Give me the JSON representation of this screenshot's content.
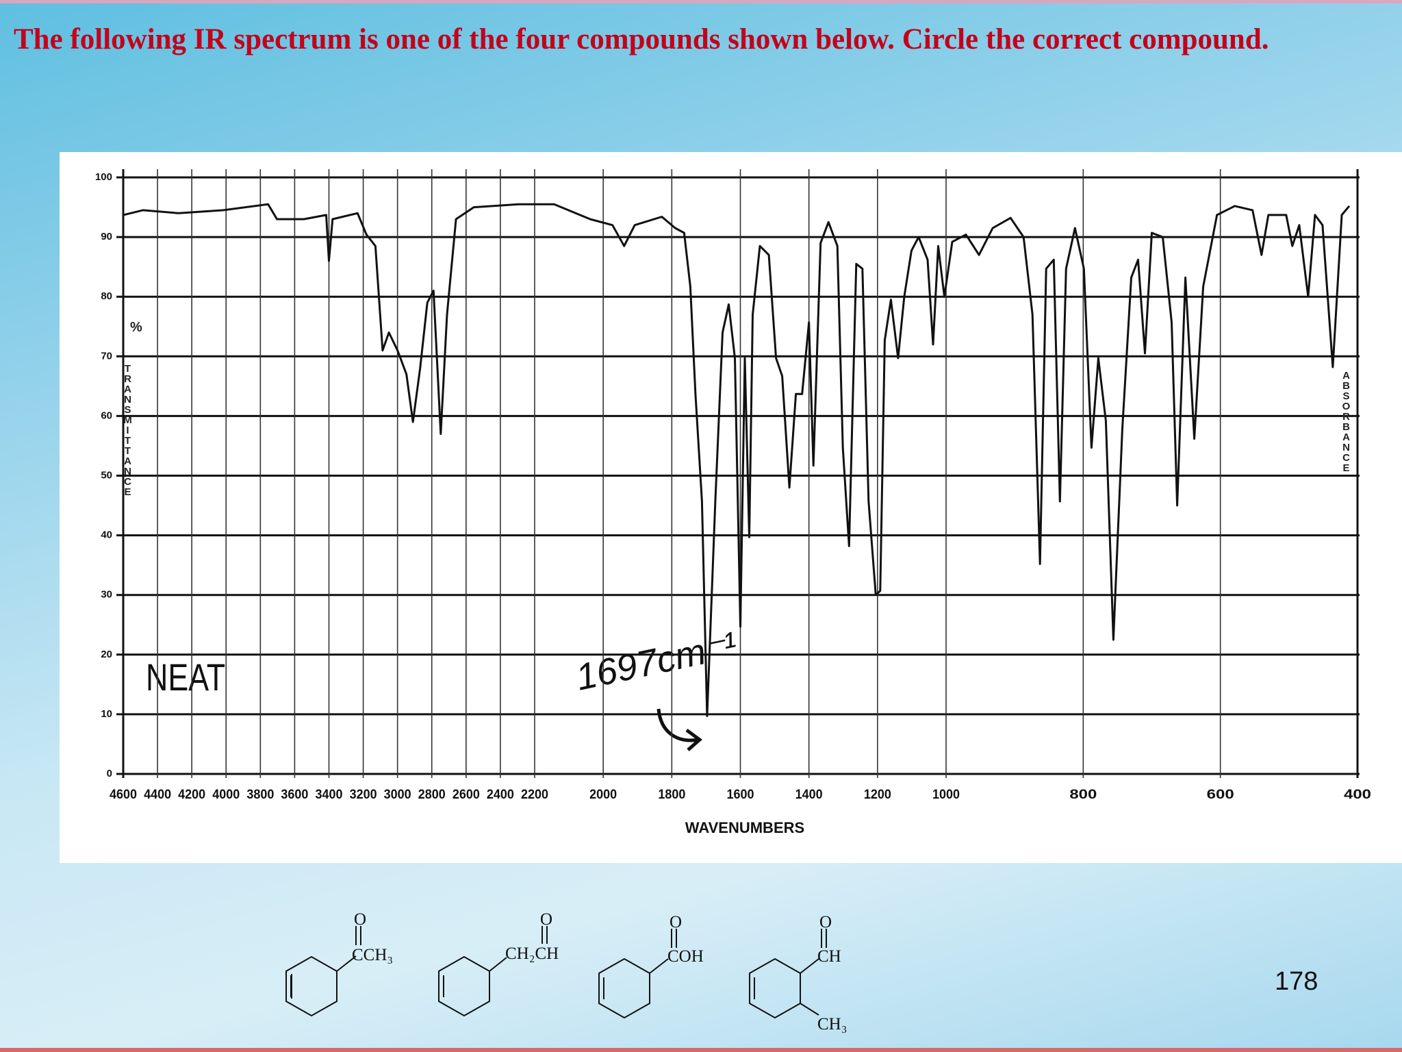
{
  "title": "The following IR spectrum is one of the four compounds shown below. Circle the correct compound.",
  "chart_data": {
    "type": "line",
    "x_label": "WAVENUMBERS",
    "y_unit": "%",
    "y_label": "TRANSMITTANCE",
    "y2_label": "ABSORBANCE",
    "annotations": [
      "NEAT",
      "1697cm⁻¹"
    ],
    "xlim": [
      4600,
      400
    ],
    "xscale_breaks": [
      2200,
      1000
    ],
    "xticks": [
      4600,
      4400,
      4200,
      4000,
      3800,
      3600,
      3400,
      3200,
      3000,
      2800,
      2600,
      2400,
      2200,
      2000,
      1800,
      1600,
      1400,
      1200,
      1000,
      800,
      600,
      400
    ],
    "ylim": [
      0,
      100
    ],
    "yticks": [
      0,
      10,
      20,
      30,
      40,
      50,
      60,
      70,
      80,
      90,
      100
    ],
    "grid": true,
    "color": "#111111",
    "x": [
      4600,
      4485,
      4277,
      4016,
      3755,
      3703,
      3546,
      3416,
      3400,
      3379,
      3233,
      3181,
      3129,
      3087,
      3050,
      3000,
      2948,
      2910,
      2868,
      2826,
      2790,
      2748,
      2711,
      2659,
      2555,
      2294,
      2143,
      2038,
      1973,
      1939,
      1908,
      1829,
      1790,
      1764,
      1746,
      1731,
      1712,
      1697,
      1673,
      1652,
      1634,
      1616,
      1600,
      1587,
      1574,
      1564,
      1543,
      1517,
      1496,
      1478,
      1457,
      1438,
      1420,
      1400,
      1387,
      1366,
      1343,
      1317,
      1301,
      1283,
      1262,
      1244,
      1226,
      1205,
      1192,
      1179,
      1161,
      1140,
      1122,
      1101,
      1080,
      1054,
      1038,
      1023,
      1005,
      991,
      971,
      952,
      932,
      906,
      887,
      874,
      863,
      854,
      843,
      834,
      825,
      812,
      799,
      788,
      778,
      767,
      756,
      743,
      730,
      720,
      710,
      700,
      684,
      671,
      663,
      651,
      638,
      625,
      605,
      579,
      553,
      540,
      530,
      504,
      495,
      485,
      472,
      462,
      451,
      436,
      423,
      412
    ],
    "values": [
      93.7,
      94.5,
      94,
      94.5,
      95.5,
      93,
      93,
      93.7,
      86,
      93,
      94,
      90.4,
      88.5,
      71,
      74,
      71,
      67,
      59,
      68,
      79,
      81,
      57,
      77,
      93,
      95,
      95.5,
      95.5,
      93,
      92,
      88.5,
      92,
      93.4,
      91.5,
      90.7,
      81.7,
      63.7,
      45.7,
      9.7,
      45.7,
      74,
      78.7,
      69.7,
      24.7,
      69.7,
      39.7,
      77,
      88.5,
      87,
      69.7,
      66.7,
      48,
      63.7,
      63.7,
      75.7,
      51.7,
      89,
      92.5,
      88.5,
      54.7,
      38.2,
      85.5,
      84.7,
      45.7,
      30,
      30.7,
      72.7,
      79.5,
      69.7,
      80,
      87.7,
      90,
      86.2,
      72,
      88.5,
      80,
      89.2,
      90.4,
      87,
      91.5,
      93.2,
      90,
      77,
      35.2,
      84.7,
      86.2,
      45.7,
      84.7,
      91.5,
      84.7,
      54.7,
      69.7,
      59.2,
      22.5,
      57.7,
      83.2,
      86.2,
      70.5,
      90.7,
      90,
      75.7,
      45,
      83.2,
      56.2,
      81.7,
      93.7,
      95.2,
      94.5,
      87,
      93.7,
      93.7,
      88.5,
      92,
      80,
      93.7,
      92,
      68.2,
      93.7,
      95.2
    ]
  },
  "compounds": [
    {
      "oxygen": "O",
      "group": "CCH₃"
    },
    {
      "oxygen": "O",
      "group": "CH₂CH"
    },
    {
      "oxygen": "O",
      "group": "COH"
    },
    {
      "oxygen": "O",
      "group": "CH",
      "ortho": "CH₃"
    }
  ],
  "page_number": "178"
}
